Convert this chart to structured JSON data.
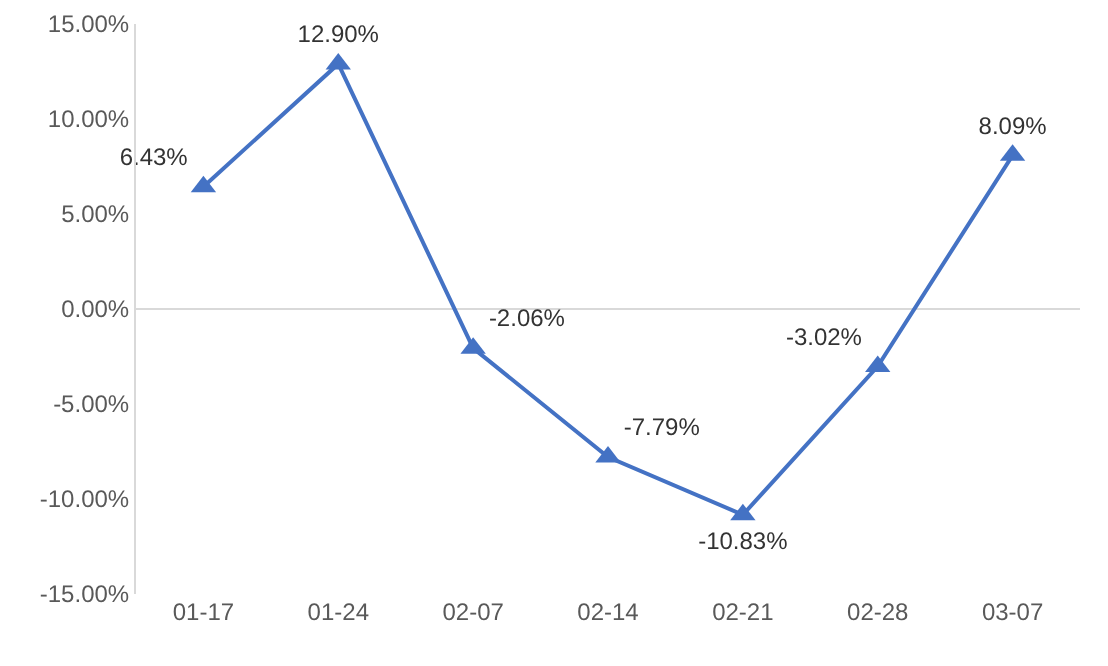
{
  "chart_data": {
    "type": "line",
    "categories": [
      "01-17",
      "01-24",
      "02-07",
      "02-14",
      "02-21",
      "02-28",
      "03-07"
    ],
    "series": [
      {
        "color": "#4472c4",
        "values": [
          6.43,
          12.9,
          -2.06,
          -7.79,
          -10.83,
          -3.02,
          8.09
        ],
        "value_labels": [
          "6.43%",
          "12.90%",
          "-2.06%",
          "-7.79%",
          "-10.83%",
          "-3.02%",
          "8.09%"
        ]
      }
    ],
    "ylim": [
      -15,
      15
    ],
    "yticks": [
      {
        "value": -15,
        "label": "-15.00%"
      },
      {
        "value": -10,
        "label": "-10.00%"
      },
      {
        "value": -5,
        "label": "-5.00%"
      },
      {
        "value": 0,
        "label": "0.00%"
      },
      {
        "value": 5,
        "label": "5.00%"
      },
      {
        "value": 10,
        "label": "10.00%"
      },
      {
        "value": 15,
        "label": "15.00%"
      }
    ],
    "ref_lines": [
      {
        "axis": "y",
        "value": 0,
        "color": "#d9d9d9"
      }
    ],
    "grid": false,
    "legend": false,
    "marker": "triangle",
    "line_style": "solid"
  }
}
